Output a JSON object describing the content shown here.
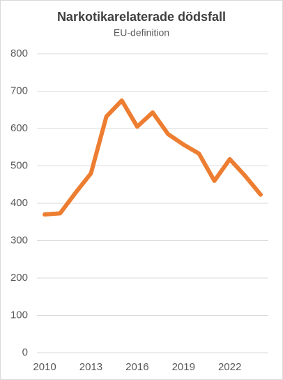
{
  "chart_data": {
    "type": "line",
    "title": "Narkotikarelaterade dödsfall",
    "subtitle": "EU-definition",
    "x": [
      2010,
      2011,
      2012,
      2013,
      2014,
      2015,
      2016,
      2017,
      2018,
      2019,
      2020,
      2021,
      2022,
      2023,
      2024
    ],
    "series": [
      {
        "name": "Narkotikarelaterade dödsfall",
        "color": "#ed7d31",
        "values": [
          370,
          373,
          428,
          480,
          632,
          675,
          605,
          643,
          585,
          557,
          533,
          460,
          518,
          473,
          423
        ]
      }
    ],
    "xlim": [
      2009.5,
      2024.5
    ],
    "xticks": [
      2010,
      2013,
      2016,
      2019,
      2022
    ],
    "ylim": [
      0,
      800
    ],
    "yticks": [
      0,
      100,
      200,
      300,
      400,
      500,
      600,
      700,
      800
    ],
    "grid": true
  }
}
